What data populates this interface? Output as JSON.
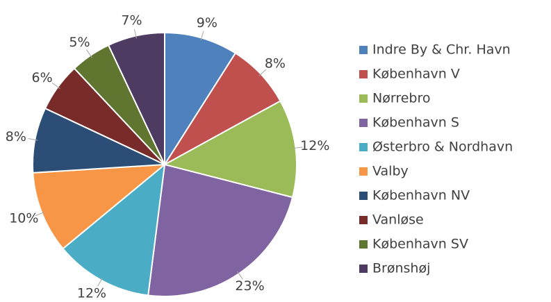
{
  "chart_data": {
    "type": "pie",
    "categories": [
      "Indre By & Chr. Havn",
      "København V",
      "Nørrebro",
      "København S",
      "Østerbro & Nordhavn",
      "Valby",
      "København NV",
      "Vanløse",
      "København SV",
      "Brønshøj"
    ],
    "values": [
      9,
      8,
      12,
      23,
      12,
      10,
      8,
      6,
      5,
      7
    ],
    "value_labels": [
      "9%",
      "8%",
      "12%",
      "23%",
      "12%",
      "10%",
      "8%",
      "6%",
      "5%",
      "7%"
    ],
    "colors": [
      "#4f81bd",
      "#c0504d",
      "#9bbb59",
      "#8064a2",
      "#4bacc6",
      "#f79646",
      "#2c4d75",
      "#772c2a",
      "#5f7530",
      "#4d3b62"
    ],
    "legend": "right"
  }
}
